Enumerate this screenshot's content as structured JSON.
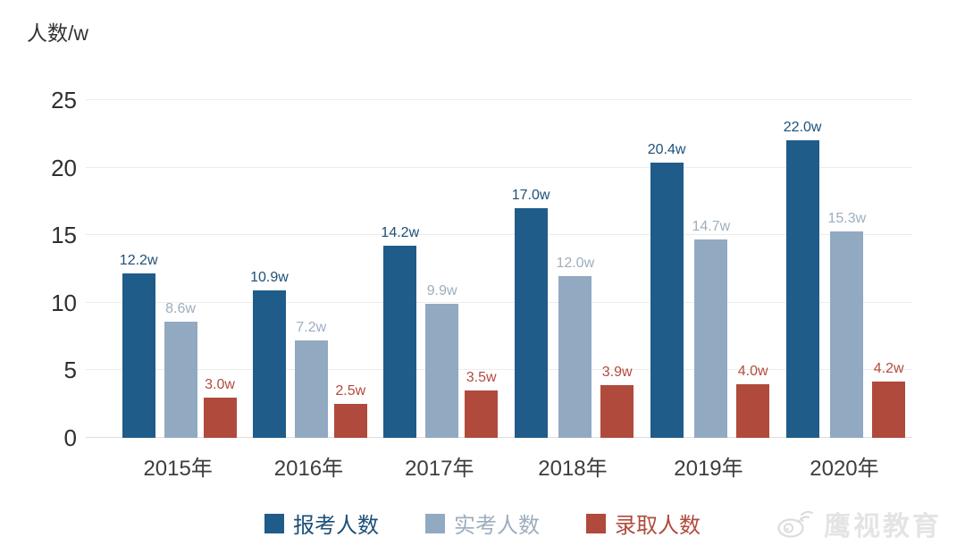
{
  "chart_data": {
    "type": "bar",
    "title": "人数/w",
    "categories": [
      "2015年",
      "2016年",
      "2017年",
      "2018年",
      "2019年",
      "2020年"
    ],
    "series": [
      {
        "name": "报考人数",
        "color": "#1f5c8a",
        "label_color": "#1d5078",
        "values": [
          12.2,
          10.9,
          14.2,
          17.0,
          20.4,
          22.0
        ]
      },
      {
        "name": "实考人数",
        "color": "#92a9c2",
        "label_color": "#9daebf",
        "values": [
          8.6,
          7.2,
          9.9,
          12.0,
          14.7,
          15.3
        ]
      },
      {
        "name": "录取人数",
        "color": "#b04a3c",
        "label_color": "#b14b3d",
        "values": [
          3.0,
          2.5,
          3.5,
          3.9,
          4.0,
          4.2
        ]
      }
    ],
    "value_suffix": "w",
    "xlabel": "",
    "ylabel": "人数/w",
    "ylim": [
      0,
      25
    ],
    "yticks": [
      0,
      5,
      10,
      15,
      20,
      25
    ],
    "grid": true,
    "legend_position": "bottom"
  },
  "watermark": {
    "text": "鹰视教育",
    "icon": "weibo-icon"
  }
}
